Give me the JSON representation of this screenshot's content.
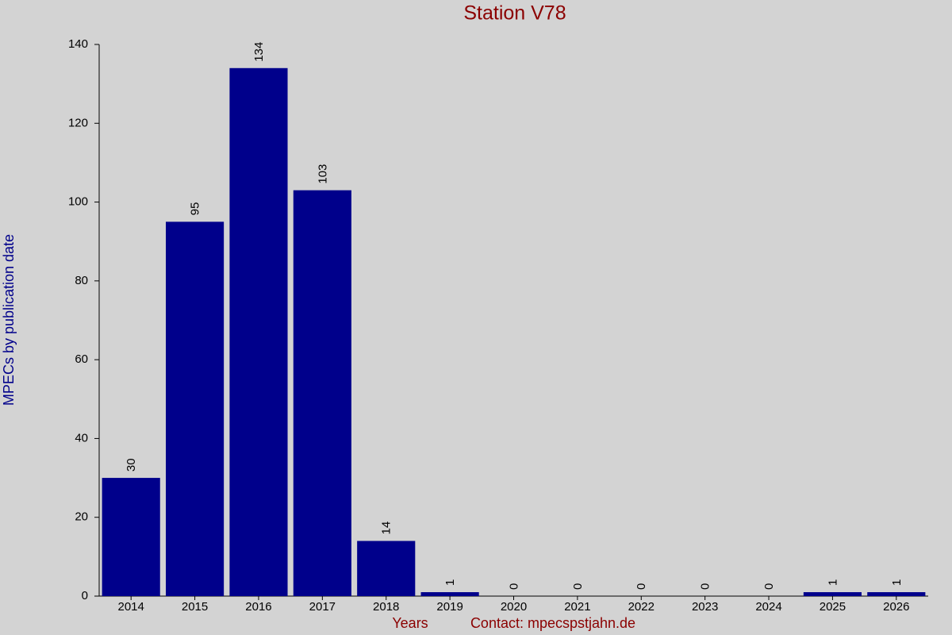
{
  "chart_data": {
    "type": "bar",
    "title": "Station V78",
    "x_label": "Years",
    "y_label": "MPECs by publication date",
    "annotation": "Contact: mpecspstjahn.de",
    "categories": [
      "2014",
      "2015",
      "2016",
      "2017",
      "2018",
      "2019",
      "2020",
      "2021",
      "2022",
      "2023",
      "2024",
      "2025",
      "2026"
    ],
    "values": [
      30,
      95,
      134,
      103,
      14,
      1,
      0,
      0,
      0,
      0,
      0,
      1,
      1
    ],
    "color": "#00008b",
    "ylim": [
      0,
      140
    ],
    "yticks": [
      0,
      20,
      40,
      60,
      80,
      100,
      120,
      140
    ],
    "grid": false
  }
}
